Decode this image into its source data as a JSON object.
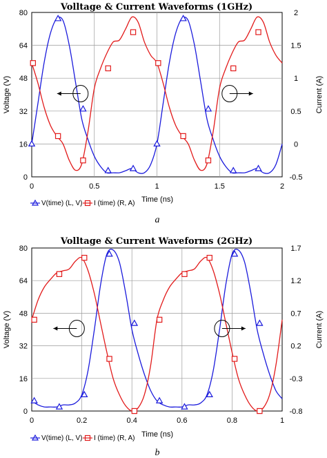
{
  "chart_data": [
    {
      "type": "line",
      "title": "Volltage & Current Waveforms (1GHz)",
      "caption": "a",
      "xlabel": "Time (ns)",
      "ylabel_left": "Voltage (V)",
      "ylabel_right": "Current (A)",
      "xlim": [
        0,
        2
      ],
      "ylim_left": [
        0,
        80
      ],
      "ylim_right": [
        -0.5,
        2
      ],
      "x_ticks": [
        "0",
        "0.5",
        "1",
        "1.5",
        "2"
      ],
      "y_left_ticks": [
        "0",
        "16",
        "32",
        "48",
        "64",
        "80"
      ],
      "y_right_ticks": [
        "-0.5",
        "0",
        "0.5",
        "1",
        "1.5",
        "2"
      ],
      "grid": true,
      "legend": [
        "V(time) (L, V)",
        "I (time) (R, A)"
      ],
      "series": [
        {
          "name": "V(time) (L, V)",
          "axis": "left",
          "color": "#1a1adc",
          "marker": "triangle",
          "x": [
            0,
            0.05,
            0.1,
            0.15,
            0.2,
            0.25,
            0.3,
            0.35,
            0.4,
            0.45,
            0.5,
            0.55,
            0.6,
            0.65,
            0.7,
            0.75,
            0.8,
            0.85,
            0.9,
            0.95,
            1.0,
            1.05,
            1.1,
            1.15,
            1.2,
            1.25,
            1.3,
            1.35,
            1.4,
            1.45,
            1.5,
            1.55,
            1.6,
            1.65,
            1.7,
            1.75,
            1.8,
            1.85,
            1.9,
            1.95,
            2.0
          ],
          "values": [
            16,
            36,
            56,
            70,
            77,
            76,
            64,
            46,
            28,
            18,
            10,
            5,
            2,
            2,
            2,
            3,
            4,
            2,
            2,
            6,
            16,
            36,
            56,
            70,
            77,
            76,
            64,
            46,
            28,
            18,
            10,
            5,
            2,
            2,
            2,
            3,
            4,
            2,
            2,
            6,
            16
          ],
          "marker_x": [
            0,
            0.21,
            0.41,
            0.61,
            0.81,
            1.0,
            1.21,
            1.41,
            1.61,
            1.81
          ],
          "marker_values": [
            16,
            77,
            33,
            3,
            4,
            16,
            77,
            33,
            3,
            4
          ]
        },
        {
          "name": "I (time) (R, A)",
          "axis": "right",
          "color": "#e21a1a",
          "marker": "square",
          "x": [
            0,
            0.05,
            0.1,
            0.15,
            0.2,
            0.25,
            0.3,
            0.35,
            0.4,
            0.45,
            0.5,
            0.55,
            0.6,
            0.65,
            0.7,
            0.75,
            0.8,
            0.85,
            0.9,
            0.95,
            1.0,
            1.05,
            1.1,
            1.15,
            1.2,
            1.25,
            1.3,
            1.35,
            1.4,
            1.45,
            1.5,
            1.55,
            1.6,
            1.65,
            1.7,
            1.75,
            1.8,
            1.85,
            1.9,
            1.95,
            2.0
          ],
          "values": [
            1.23,
            0.92,
            0.55,
            0.28,
            0.12,
            0.0,
            -0.25,
            -0.4,
            -0.3,
            0.2,
            0.85,
            1.15,
            1.38,
            1.55,
            1.58,
            1.75,
            1.93,
            1.85,
            1.55,
            1.35,
            1.23,
            0.92,
            0.55,
            0.28,
            0.12,
            0.0,
            -0.25,
            -0.4,
            -0.3,
            0.2,
            0.85,
            1.15,
            1.38,
            1.55,
            1.58,
            1.75,
            1.93,
            1.85,
            1.55,
            1.35,
            1.23
          ],
          "marker_x": [
            0.01,
            0.21,
            0.41,
            0.61,
            0.81,
            1.01,
            1.21,
            1.41,
            1.61,
            1.81
          ],
          "marker_values": [
            1.23,
            0.12,
            -0.25,
            1.15,
            1.7,
            1.23,
            0.12,
            -0.25,
            1.15,
            1.7
          ]
        }
      ],
      "annotations": [
        {
          "type": "circle-arrow",
          "x": 0.39,
          "axis": "left",
          "y": 40.5,
          "direction": "left"
        },
        {
          "type": "circle-arrow",
          "x": 1.58,
          "axis": "left",
          "y": 40.5,
          "direction": "right"
        }
      ]
    },
    {
      "type": "line",
      "title": "Volltage & Current Waveforms (2GHz)",
      "caption": "b",
      "xlabel": "Time (ns)",
      "ylabel_left": "Voltage (V)",
      "ylabel_right": "Current (A)",
      "xlim": [
        0,
        1
      ],
      "ylim_left": [
        0,
        80
      ],
      "ylim_right": [
        -0.8,
        1.7
      ],
      "x_ticks": [
        "0",
        "0.2",
        "0.4",
        "0.6",
        "0.8",
        "1"
      ],
      "y_left_ticks": [
        "0",
        "16",
        "32",
        "48",
        "64",
        "80"
      ],
      "y_right_ticks": [
        "-0.8",
        "-0.3",
        "0.2",
        "0.7",
        "1.2",
        "1.7"
      ],
      "grid": true,
      "legend": [
        "V(time) (L, V)",
        "I (time) (R, A)"
      ],
      "series": [
        {
          "name": "V(time) (L, V)",
          "axis": "left",
          "color": "#1a1adc",
          "marker": "triangle",
          "x": [
            0,
            0.025,
            0.05,
            0.075,
            0.1,
            0.125,
            0.15,
            0.175,
            0.2,
            0.225,
            0.25,
            0.275,
            0.3,
            0.325,
            0.35,
            0.375,
            0.4,
            0.425,
            0.45,
            0.475,
            0.5,
            0.525,
            0.55,
            0.575,
            0.6,
            0.625,
            0.65,
            0.675,
            0.7,
            0.725,
            0.75,
            0.775,
            0.8,
            0.825,
            0.85,
            0.875,
            0.9,
            0.925,
            0.95,
            0.975,
            1.0
          ],
          "values": [
            5,
            3,
            2,
            2,
            2,
            3,
            3,
            4,
            8,
            20,
            40,
            62,
            77,
            79,
            73,
            58,
            40,
            28,
            18,
            10,
            5,
            3,
            2,
            2,
            2,
            3,
            3,
            4,
            8,
            20,
            40,
            62,
            77,
            79,
            73,
            58,
            40,
            28,
            18,
            10,
            6
          ],
          "marker_x": [
            0.01,
            0.11,
            0.21,
            0.31,
            0.41,
            0.51,
            0.61,
            0.71,
            0.81,
            0.91
          ],
          "marker_values": [
            5,
            2,
            8,
            77,
            43,
            5,
            2,
            8,
            77,
            43
          ]
        },
        {
          "name": "I (time) (R, A)",
          "axis": "right",
          "color": "#e21a1a",
          "marker": "square",
          "x": [
            0,
            0.025,
            0.05,
            0.075,
            0.1,
            0.125,
            0.15,
            0.175,
            0.2,
            0.225,
            0.25,
            0.275,
            0.3,
            0.325,
            0.35,
            0.375,
            0.4,
            0.425,
            0.45,
            0.475,
            0.5,
            0.525,
            0.55,
            0.575,
            0.6,
            0.625,
            0.65,
            0.675,
            0.7,
            0.725,
            0.75,
            0.775,
            0.8,
            0.825,
            0.85,
            0.875,
            0.9,
            0.925,
            0.95,
            0.975,
            1.0
          ],
          "values": [
            0.6,
            0.9,
            1.1,
            1.22,
            1.32,
            1.35,
            1.38,
            1.5,
            1.55,
            1.35,
            1.0,
            0.55,
            0.1,
            -0.3,
            -0.55,
            -0.72,
            -0.8,
            -0.75,
            -0.55,
            -0.1,
            0.6,
            0.9,
            1.1,
            1.22,
            1.32,
            1.35,
            1.38,
            1.5,
            1.55,
            1.35,
            1.0,
            0.55,
            0.1,
            -0.3,
            -0.55,
            -0.72,
            -0.8,
            -0.75,
            -0.55,
            -0.1,
            0.6
          ],
          "marker_x": [
            0.01,
            0.11,
            0.21,
            0.31,
            0.41,
            0.51,
            0.61,
            0.71,
            0.81,
            0.91
          ],
          "marker_values": [
            0.6,
            1.3,
            1.55,
            0.0,
            -0.8,
            0.6,
            1.3,
            1.55,
            0.0,
            -0.8
          ]
        }
      ],
      "annotations": [
        {
          "type": "circle-arrow",
          "x": 0.18,
          "axis": "left",
          "y": 40.5,
          "direction": "left"
        },
        {
          "type": "circle-arrow",
          "x": 0.76,
          "axis": "left",
          "y": 40.5,
          "direction": "right"
        }
      ]
    }
  ]
}
